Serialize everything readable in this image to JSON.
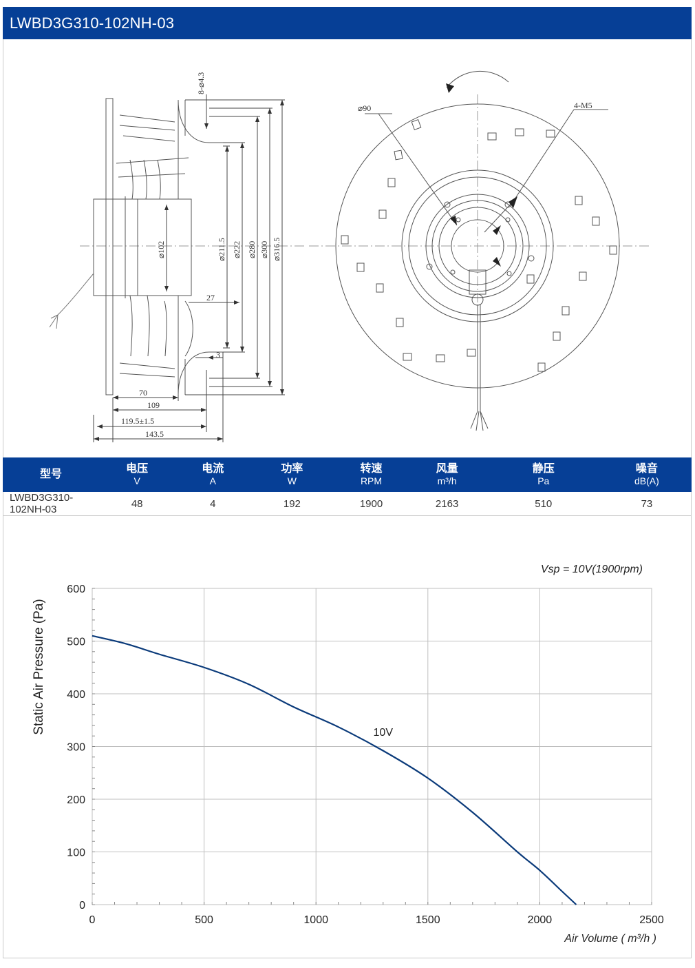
{
  "title": "LWBD3G310-102NH-03",
  "drawing": {
    "side_dims": [
      "8-⌀4.3",
      "⌀102",
      "⌀211.5",
      "⌀222",
      "⌀280",
      "⌀300",
      "⌀316.5",
      "27",
      "3",
      "70",
      "109",
      "119.5±1.5",
      "143.5"
    ],
    "front_dims": [
      "⌀90",
      "4-M5"
    ]
  },
  "table": {
    "headers": [
      {
        "label": "型号",
        "unit": ""
      },
      {
        "label": "电压",
        "unit": "V"
      },
      {
        "label": "电流",
        "unit": "A"
      },
      {
        "label": "功率",
        "unit": "W"
      },
      {
        "label": "转速",
        "unit": "RPM"
      },
      {
        "label": "风量",
        "unit": "m³/h"
      },
      {
        "label": "静压",
        "unit": "Pa"
      },
      {
        "label": "噪音",
        "unit": "dB(A)"
      }
    ],
    "row": [
      "LWBD3G310-102NH-03",
      "48",
      "4",
      "192",
      "1900",
      "2163",
      "510",
      "73"
    ]
  },
  "chart_data": {
    "type": "line",
    "annotation": "Vsp = 10V(1900rpm)",
    "xlabel": "Air Volume ( m³/h )",
    "ylabel": "Static Air Pressure  (Pa)",
    "xlim": [
      0,
      2500
    ],
    "ylim": [
      0,
      600
    ],
    "xticks": [
      "0",
      "500",
      "1000",
      "1500",
      "2000",
      "2500"
    ],
    "yticks": [
      "0",
      "100",
      "200",
      "300",
      "400",
      "500",
      "600"
    ],
    "grid": true,
    "series": [
      {
        "name": "10V",
        "color": "#0a3a7a",
        "x": [
          0,
          150,
          300,
          500,
          700,
          900,
          1100,
          1300,
          1500,
          1700,
          1900,
          2000,
          2100,
          2163
        ],
        "y": [
          510,
          495,
          475,
          450,
          418,
          375,
          337,
          292,
          240,
          175,
          100,
          65,
          25,
          0
        ]
      }
    ]
  }
}
